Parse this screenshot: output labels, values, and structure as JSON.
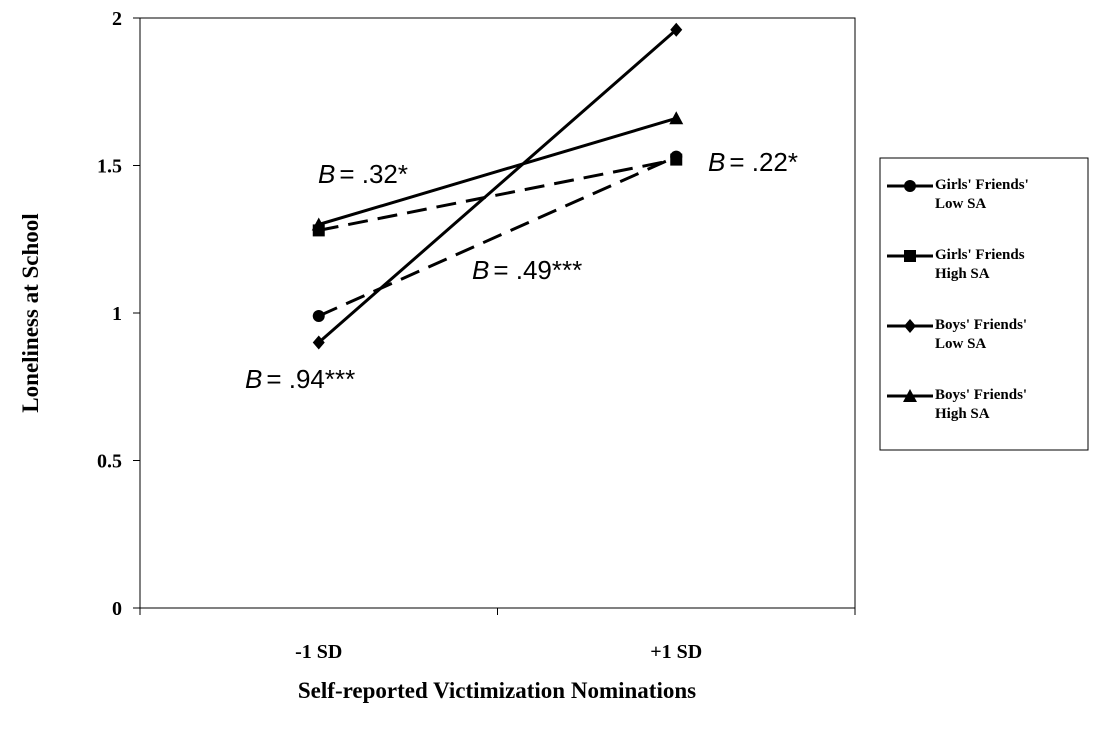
{
  "chart_data": {
    "type": "line",
    "x_label": "Self-reported Victimization Nominations",
    "y_label": "Loneliness at School",
    "categories": [
      "-1 SD",
      "+1 SD"
    ],
    "ylim": [
      0,
      2
    ],
    "yticks": [
      0,
      0.5,
      1,
      1.5,
      2
    ],
    "series": [
      {
        "name": "Girls' Friends' Low SA",
        "color": "#000000",
        "marker": "circle",
        "dash": true,
        "values": [
          0.99,
          1.53
        ]
      },
      {
        "name": "Girls' Friends High SA",
        "color": "#000000",
        "marker": "square",
        "dash": true,
        "values": [
          1.28,
          1.52
        ]
      },
      {
        "name": "Boys' Friends' Low SA",
        "color": "#000000",
        "marker": "diamond",
        "dash": false,
        "values": [
          0.9,
          1.96
        ]
      },
      {
        "name": "Boys' Friends' High SA",
        "color": "#000000",
        "marker": "triangle",
        "dash": false,
        "values": [
          1.3,
          1.66
        ]
      }
    ],
    "annotations": [
      {
        "italic": "B",
        "text": "= .32*"
      },
      {
        "italic": "B",
        "text": "= .22*"
      },
      {
        "italic": "B",
        "text": "= .49***"
      },
      {
        "italic": "B",
        "text": "= .94***"
      }
    ],
    "legend": "right"
  }
}
